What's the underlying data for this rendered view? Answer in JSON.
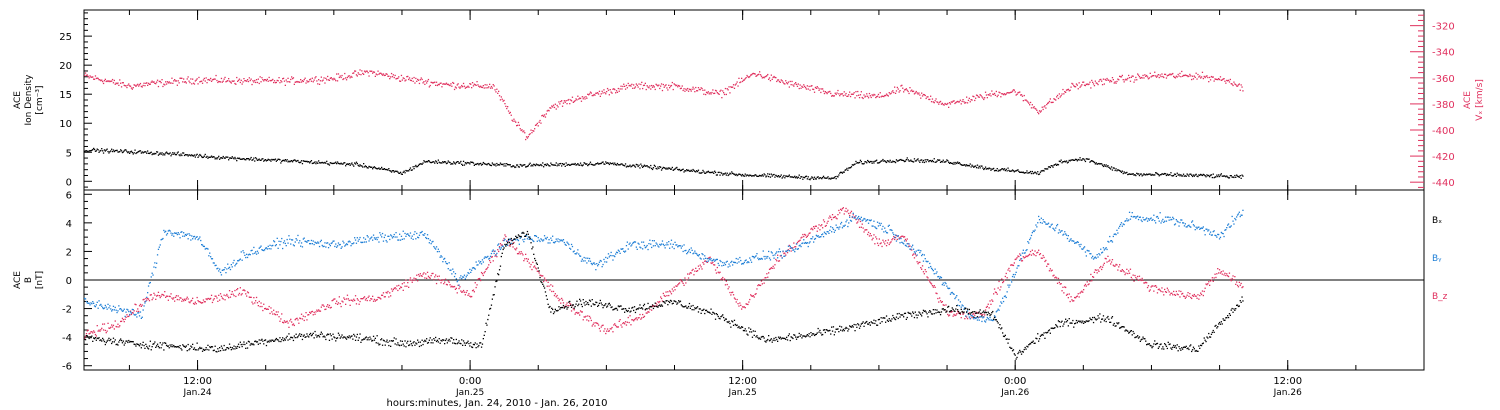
{
  "figure": {
    "xlabel": "hours:minutes, Jan. 24, 2010 - Jan. 26, 2010",
    "x_start": "2010-01-24T07:00",
    "x_end": "2010-01-26T18:00",
    "x_ticks": [
      {
        "time": "2010-01-24T12:00",
        "label": "12:00",
        "sublabel": "Jan.24"
      },
      {
        "time": "2010-01-25T00:00",
        "label": "0:00",
        "sublabel": "Jan.25"
      },
      {
        "time": "2010-01-25T12:00",
        "label": "12:00",
        "sublabel": "Jan.25"
      },
      {
        "time": "2010-01-26T00:00",
        "label": "0:00",
        "sublabel": "Jan.26"
      },
      {
        "time": "2010-01-26T12:00",
        "label": "12:00",
        "sublabel": "Jan.26"
      }
    ]
  },
  "colors": {
    "black": "#000000",
    "blue": "#1f7fd6",
    "red": "#e0305e"
  },
  "chart_data": [
    {
      "type": "scatter",
      "panel": "top",
      "ylabel_left": [
        "ACE",
        "Ion Density",
        "[cm⁻³]"
      ],
      "ylim_left": [
        -1.5,
        29.5
      ],
      "yticks_left": [
        0,
        5,
        10,
        15,
        20,
        25
      ],
      "ylabel_right": [
        "ACE",
        "Vₓ [km/s]"
      ],
      "ylim_right": [
        -446,
        -308
      ],
      "yticks_right": [
        -440,
        -420,
        -400,
        -380,
        -360,
        -340,
        -320
      ],
      "series": [
        {
          "name": "Ion Density",
          "axis": "left",
          "color": "black",
          "x": [
            "2010-01-24T07:00",
            "2010-01-24T09:00",
            "2010-01-24T11:00",
            "2010-01-24T13:00",
            "2010-01-24T15:00",
            "2010-01-24T17:00",
            "2010-01-24T19:00",
            "2010-01-24T21:00",
            "2010-01-24T22:00",
            "2010-01-25T00:00",
            "2010-01-25T02:00",
            "2010-01-25T04:00",
            "2010-01-25T06:00",
            "2010-01-25T08:00",
            "2010-01-25T10:00",
            "2010-01-25T12:00",
            "2010-01-25T14:00",
            "2010-01-25T16:00",
            "2010-01-25T17:00",
            "2010-01-25T19:00",
            "2010-01-25T21:00",
            "2010-01-25T23:00",
            "2010-01-26T01:00",
            "2010-01-26T02:00",
            "2010-01-26T03:00",
            "2010-01-26T05:00",
            "2010-01-26T07:00",
            "2010-01-26T09:00",
            "2010-01-26T10:00"
          ],
          "values": [
            5.5,
            5.2,
            4.8,
            4.2,
            3.8,
            3.4,
            3.0,
            1.5,
            3.5,
            3.2,
            2.8,
            3.0,
            3.2,
            2.5,
            1.8,
            1.2,
            0.9,
            0.6,
            3.3,
            3.8,
            3.5,
            2.2,
            1.5,
            3.5,
            4.0,
            1.3,
            1.2,
            1.0,
            0.8
          ]
        },
        {
          "name": "Vx",
          "axis": "right",
          "color": "red",
          "x": [
            "2010-01-24T07:00",
            "2010-01-24T08:00",
            "2010-01-24T09:00",
            "2010-01-24T10:00",
            "2010-01-24T12:00",
            "2010-01-24T14:00",
            "2010-01-24T16:00",
            "2010-01-24T18:00",
            "2010-01-24T19:30",
            "2010-01-24T21:00",
            "2010-01-24T23:00",
            "2010-01-25T01:00",
            "2010-01-25T01:30",
            "2010-01-25T02:00",
            "2010-01-25T02:30",
            "2010-01-25T03:30",
            "2010-01-25T05:00",
            "2010-01-25T07:00",
            "2010-01-25T09:00",
            "2010-01-25T11:00",
            "2010-01-25T12:30",
            "2010-01-25T14:00",
            "2010-01-25T16:00",
            "2010-01-25T18:00",
            "2010-01-25T19:00",
            "2010-01-25T21:00",
            "2010-01-25T23:00",
            "2010-01-26T00:00",
            "2010-01-26T01:00",
            "2010-01-26T02:30",
            "2010-01-26T04:00",
            "2010-01-26T06:00",
            "2010-01-26T08:00",
            "2010-01-26T09:30",
            "2010-01-26T10:00"
          ],
          "values": [
            -358,
            -362,
            -366,
            -364,
            -361,
            -362,
            -362,
            -360,
            -355,
            -360,
            -365,
            -366,
            -380,
            -395,
            -405,
            -382,
            -374,
            -366,
            -366,
            -372,
            -356,
            -364,
            -372,
            -374,
            -368,
            -380,
            -372,
            -370,
            -385,
            -366,
            -362,
            -358,
            -358,
            -362,
            -368
          ]
        }
      ]
    },
    {
      "type": "scatter",
      "panel": "bottom",
      "ylabel_left": [
        "ACE",
        "B",
        "[nT]"
      ],
      "ylim_left": [
        -6.3,
        6.3
      ],
      "yticks_left": [
        -6,
        -4,
        -2,
        0,
        2,
        4,
        6
      ],
      "zero_line": true,
      "legend": "right",
      "series": [
        {
          "name": "Bₓ",
          "color": "black",
          "x": [
            "2010-01-24T07:00",
            "2010-01-24T09:00",
            "2010-01-24T11:00",
            "2010-01-24T13:00",
            "2010-01-24T15:00",
            "2010-01-24T17:00",
            "2010-01-24T19:00",
            "2010-01-24T21:00",
            "2010-01-24T23:00",
            "2010-01-25T00:30",
            "2010-01-25T01:30",
            "2010-01-25T02:30",
            "2010-01-25T03:30",
            "2010-01-25T05:00",
            "2010-01-25T07:00",
            "2010-01-25T09:00",
            "2010-01-25T11:00",
            "2010-01-25T13:00",
            "2010-01-25T15:00",
            "2010-01-25T17:00",
            "2010-01-25T19:00",
            "2010-01-25T21:00",
            "2010-01-25T23:00",
            "2010-01-26T00:00",
            "2010-01-26T01:00",
            "2010-01-26T02:00",
            "2010-01-26T04:00",
            "2010-01-26T06:00",
            "2010-01-26T08:00",
            "2010-01-26T09:00",
            "2010-01-26T10:00"
          ],
          "values": [
            -4.0,
            -4.4,
            -4.6,
            -4.8,
            -4.2,
            -3.8,
            -4.0,
            -4.4,
            -4.2,
            -4.5,
            2.5,
            3.4,
            -2.0,
            -1.5,
            -2.0,
            -1.5,
            -2.5,
            -4.2,
            -3.8,
            -3.2,
            -2.5,
            -2.0,
            -2.4,
            -5.3,
            -4.0,
            -3.0,
            -2.6,
            -4.5,
            -4.8,
            -3.0,
            -1.4
          ]
        },
        {
          "name": "Bᵧ",
          "color": "blue",
          "x": [
            "2010-01-24T07:00",
            "2010-01-24T08:30",
            "2010-01-24T09:30",
            "2010-01-24T10:30",
            "2010-01-24T12:00",
            "2010-01-24T13:00",
            "2010-01-24T14:00",
            "2010-01-24T16:00",
            "2010-01-24T18:00",
            "2010-01-24T20:00",
            "2010-01-24T22:00",
            "2010-01-24T23:30",
            "2010-01-25T01:00",
            "2010-01-25T02:00",
            "2010-01-25T04:00",
            "2010-01-25T05:30",
            "2010-01-25T07:00",
            "2010-01-25T09:00",
            "2010-01-25T11:00",
            "2010-01-25T12:00",
            "2010-01-25T14:00",
            "2010-01-25T15:30",
            "2010-01-25T17:00",
            "2010-01-25T18:30",
            "2010-01-25T20:00",
            "2010-01-25T22:00",
            "2010-01-25T23:00",
            "2010-01-26T01:00",
            "2010-01-26T02:00",
            "2010-01-26T03:30",
            "2010-01-26T05:00",
            "2010-01-26T07:00",
            "2010-01-26T09:00",
            "2010-01-26T10:00"
          ],
          "values": [
            -1.5,
            -2.0,
            -2.5,
            3.5,
            3.0,
            0.5,
            1.8,
            2.8,
            2.5,
            3.0,
            3.2,
            0.0,
            2.0,
            3.0,
            2.8,
            1.0,
            2.5,
            2.5,
            1.2,
            1.4,
            2.0,
            3.2,
            4.5,
            3.5,
            1.5,
            -2.5,
            -2.8,
            4.2,
            3.5,
            1.5,
            4.5,
            4.2,
            3.2,
            4.8
          ]
        },
        {
          "name": "B_z",
          "color": "red",
          "x": [
            "2010-01-24T07:00",
            "2010-01-24T08:30",
            "2010-01-24T10:00",
            "2010-01-24T12:00",
            "2010-01-24T14:00",
            "2010-01-24T16:00",
            "2010-01-24T18:00",
            "2010-01-24T20:00",
            "2010-01-24T22:00",
            "2010-01-25T00:00",
            "2010-01-25T01:30",
            "2010-01-25T02:30",
            "2010-01-25T04:00",
            "2010-01-25T06:00",
            "2010-01-25T07:30",
            "2010-01-25T09:00",
            "2010-01-25T10:30",
            "2010-01-25T12:00",
            "2010-01-25T13:30",
            "2010-01-25T15:00",
            "2010-01-25T16:30",
            "2010-01-25T18:00",
            "2010-01-25T19:00",
            "2010-01-25T21:00",
            "2010-01-25T22:30",
            "2010-01-26T00:00",
            "2010-01-26T01:00",
            "2010-01-26T02:30",
            "2010-01-26T04:00",
            "2010-01-26T06:00",
            "2010-01-26T08:00",
            "2010-01-26T09:00",
            "2010-01-26T10:00"
          ],
          "values": [
            -3.8,
            -3.0,
            -1.0,
            -1.5,
            -0.8,
            -3.0,
            -1.5,
            -1.2,
            0.5,
            -1.0,
            3.0,
            1.5,
            -1.5,
            -3.5,
            -2.5,
            -0.5,
            1.5,
            -2.0,
            1.5,
            3.5,
            5.0,
            2.5,
            3.2,
            -2.2,
            -2.5,
            1.5,
            2.0,
            -1.5,
            1.5,
            -0.5,
            -1.2,
            0.8,
            -0.5
          ]
        }
      ]
    }
  ]
}
